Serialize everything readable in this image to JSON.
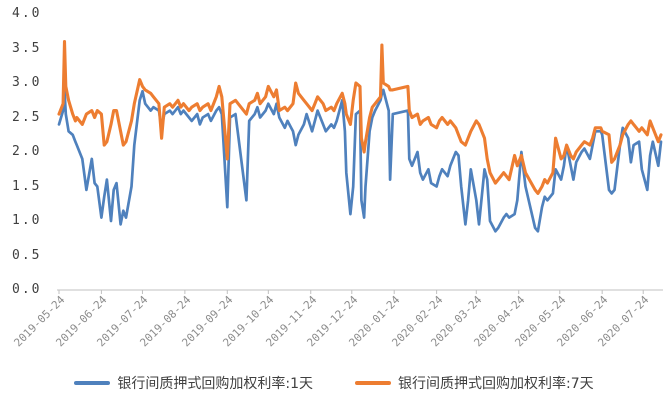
{
  "chart_data": {
    "type": "line",
    "title": "",
    "xlabel": "",
    "ylabel": "",
    "ylim": [
      0.0,
      4.0
    ],
    "grid": false,
    "legend_position": "bottom",
    "axis_color": "#c0c0c0",
    "y_tick_labels": [
      "0.0",
      "0.5",
      "1.0",
      "1.5",
      "2.0",
      "2.5",
      "3.0",
      "3.5",
      "4.0"
    ],
    "x_tick_labels": [
      "2019-05-24",
      "2019-06-24",
      "2019-07-24",
      "2019-08-24",
      "2019-09-24",
      "2019-10-24",
      "2019-11-24",
      "2019-12-24",
      "2020-01-24",
      "2020-02-24",
      "2020-03-24",
      "2020-04-24",
      "2020-05-24",
      "2020-06-24",
      "2020-07-24"
    ],
    "dates": [
      "2019-05-24",
      "2019-05-27",
      "2019-05-28",
      "2019-05-29",
      "2019-05-31",
      "2019-06-03",
      "2019-06-05",
      "2019-06-06",
      "2019-06-10",
      "2019-06-13",
      "2019-06-17",
      "2019-06-19",
      "2019-06-21",
      "2019-06-24",
      "2019-06-26",
      "2019-06-28",
      "2019-07-01",
      "2019-07-03",
      "2019-07-05",
      "2019-07-08",
      "2019-07-10",
      "2019-07-12",
      "2019-07-16",
      "2019-07-18",
      "2019-07-22",
      "2019-07-24",
      "2019-07-26",
      "2019-07-30",
      "2019-08-01",
      "2019-08-05",
      "2019-08-07",
      "2019-08-09",
      "2019-08-13",
      "2019-08-15",
      "2019-08-19",
      "2019-08-21",
      "2019-08-23",
      "2019-08-27",
      "2019-08-29",
      "2019-09-02",
      "2019-09-04",
      "2019-09-06",
      "2019-09-10",
      "2019-09-12",
      "2019-09-16",
      "2019-09-18",
      "2019-09-20",
      "2019-09-24",
      "2019-09-26",
      "2019-09-30",
      "2019-10-08",
      "2019-10-10",
      "2019-10-14",
      "2019-10-16",
      "2019-10-18",
      "2019-10-22",
      "2019-10-24",
      "2019-10-28",
      "2019-10-30",
      "2019-11-01",
      "2019-11-05",
      "2019-11-07",
      "2019-11-11",
      "2019-11-13",
      "2019-11-15",
      "2019-11-19",
      "2019-11-21",
      "2019-11-25",
      "2019-11-27",
      "2019-11-29",
      "2019-12-03",
      "2019-12-05",
      "2019-12-09",
      "2019-12-11",
      "2019-12-13",
      "2019-12-17",
      "2019-12-19",
      "2019-12-20",
      "2019-12-23",
      "2019-12-25",
      "2019-12-27",
      "2019-12-30",
      "2019-12-31",
      "2020-01-02",
      "2020-01-03",
      "2020-01-06",
      "2020-01-08",
      "2020-01-10",
      "2020-01-14",
      "2020-01-15",
      "2020-01-16",
      "2020-01-20",
      "2020-01-21",
      "2020-01-23",
      "2020-02-03",
      "2020-02-04",
      "2020-02-06",
      "2020-02-10",
      "2020-02-12",
      "2020-02-14",
      "2020-02-18",
      "2020-02-20",
      "2020-02-24",
      "2020-02-26",
      "2020-02-28",
      "2020-03-03",
      "2020-03-05",
      "2020-03-09",
      "2020-03-11",
      "2020-03-13",
      "2020-03-16",
      "2020-03-18",
      "2020-03-20",
      "2020-03-24",
      "2020-03-26",
      "2020-03-30",
      "2020-04-01",
      "2020-04-03",
      "2020-04-07",
      "2020-04-09",
      "2020-04-13",
      "2020-04-15",
      "2020-04-17",
      "2020-04-21",
      "2020-04-23",
      "2020-04-26",
      "2020-04-29",
      "2020-05-06",
      "2020-05-08",
      "2020-05-11",
      "2020-05-13",
      "2020-05-15",
      "2020-05-19",
      "2020-05-21",
      "2020-05-25",
      "2020-05-27",
      "2020-05-29",
      "2020-06-01",
      "2020-06-03",
      "2020-06-05",
      "2020-06-09",
      "2020-06-11",
      "2020-06-15",
      "2020-06-17",
      "2020-06-19",
      "2020-06-23",
      "2020-06-24",
      "2020-06-29",
      "2020-07-01",
      "2020-07-03",
      "2020-07-07",
      "2020-07-09",
      "2020-07-13",
      "2020-07-15",
      "2020-07-17",
      "2020-07-21",
      "2020-07-23",
      "2020-07-27",
      "2020-07-29",
      "2020-07-31",
      "2020-08-04",
      "2020-08-06"
    ],
    "series": [
      {
        "name": "银行间质押式回购加权利率:1天",
        "color": "#4f81bd",
        "line_width": 2.7,
        "values": [
          2.4,
          2.6,
          2.9,
          2.55,
          2.3,
          2.25,
          2.15,
          2.1,
          1.9,
          1.45,
          1.9,
          1.55,
          1.5,
          1.05,
          1.35,
          1.6,
          1.0,
          1.45,
          1.55,
          0.95,
          1.15,
          1.05,
          1.5,
          2.1,
          2.75,
          2.88,
          2.7,
          2.6,
          2.65,
          2.6,
          2.35,
          2.55,
          2.6,
          2.55,
          2.65,
          2.55,
          2.6,
          2.5,
          2.45,
          2.55,
          2.4,
          2.5,
          2.55,
          2.45,
          2.6,
          2.65,
          2.55,
          1.2,
          2.5,
          2.55,
          1.3,
          2.45,
          2.55,
          2.65,
          2.5,
          2.6,
          2.7,
          2.55,
          2.7,
          2.5,
          2.35,
          2.45,
          2.3,
          2.1,
          2.25,
          2.4,
          2.55,
          2.3,
          2.45,
          2.6,
          2.4,
          2.3,
          2.4,
          2.35,
          2.45,
          2.75,
          2.3,
          1.7,
          1.1,
          1.5,
          2.55,
          2.6,
          1.3,
          1.05,
          1.5,
          2.3,
          2.5,
          2.6,
          2.75,
          2.85,
          2.9,
          2.6,
          1.6,
          2.55,
          2.6,
          1.9,
          1.8,
          2.0,
          1.7,
          1.6,
          1.75,
          1.55,
          1.5,
          1.65,
          1.75,
          1.65,
          1.8,
          2.0,
          1.95,
          1.5,
          0.95,
          1.3,
          1.75,
          1.3,
          0.95,
          1.75,
          1.6,
          1.0,
          0.85,
          0.9,
          1.05,
          1.1,
          1.05,
          1.1,
          1.3,
          2.0,
          1.5,
          0.9,
          0.85,
          1.2,
          1.35,
          1.3,
          1.4,
          1.75,
          1.6,
          1.8,
          2.1,
          1.8,
          1.6,
          1.85,
          2.0,
          2.05,
          1.9,
          2.1,
          2.3,
          2.3,
          2.25,
          1.45,
          1.4,
          1.45,
          2.1,
          2.35,
          2.2,
          1.85,
          2.1,
          2.15,
          1.75,
          1.45,
          1.95,
          2.15,
          1.8,
          2.15
        ]
      },
      {
        "name": "银行间质押式回购加权利率:7天",
        "color": "#ed7d31",
        "line_width": 3.1,
        "values": [
          2.55,
          2.7,
          3.6,
          2.95,
          2.75,
          2.55,
          2.45,
          2.5,
          2.4,
          2.55,
          2.6,
          2.5,
          2.6,
          2.55,
          2.1,
          2.15,
          2.4,
          2.6,
          2.6,
          2.3,
          2.1,
          2.15,
          2.45,
          2.7,
          3.05,
          2.95,
          2.9,
          2.85,
          2.8,
          2.7,
          2.2,
          2.65,
          2.7,
          2.65,
          2.75,
          2.65,
          2.7,
          2.6,
          2.65,
          2.7,
          2.6,
          2.65,
          2.7,
          2.6,
          2.8,
          2.95,
          2.8,
          1.9,
          2.7,
          2.75,
          2.55,
          2.7,
          2.75,
          2.85,
          2.7,
          2.8,
          2.95,
          2.8,
          2.9,
          2.6,
          2.65,
          2.6,
          2.7,
          3.0,
          2.85,
          2.75,
          2.7,
          2.6,
          2.7,
          2.8,
          2.7,
          2.6,
          2.65,
          2.6,
          2.7,
          2.85,
          2.7,
          2.55,
          2.4,
          2.75,
          3.0,
          2.95,
          2.2,
          2.0,
          2.15,
          2.5,
          2.65,
          2.7,
          2.8,
          3.55,
          3.0,
          2.95,
          2.9,
          2.9,
          2.95,
          2.6,
          2.5,
          2.55,
          2.4,
          2.45,
          2.5,
          2.4,
          2.35,
          2.45,
          2.5,
          2.4,
          2.45,
          2.35,
          2.25,
          2.15,
          2.1,
          2.2,
          2.3,
          2.45,
          2.4,
          2.2,
          1.9,
          1.7,
          1.55,
          1.6,
          1.7,
          1.65,
          1.6,
          1.95,
          1.8,
          1.95,
          1.7,
          1.45,
          1.4,
          1.5,
          1.6,
          1.55,
          1.7,
          2.2,
          1.9,
          1.95,
          2.1,
          1.95,
          1.9,
          2.0,
          2.1,
          2.15,
          2.1,
          2.2,
          2.35,
          2.35,
          2.3,
          2.25,
          1.85,
          1.9,
          2.1,
          2.25,
          2.4,
          2.45,
          2.4,
          2.3,
          2.35,
          2.25,
          2.45,
          2.35,
          2.15,
          2.25
        ]
      }
    ]
  }
}
